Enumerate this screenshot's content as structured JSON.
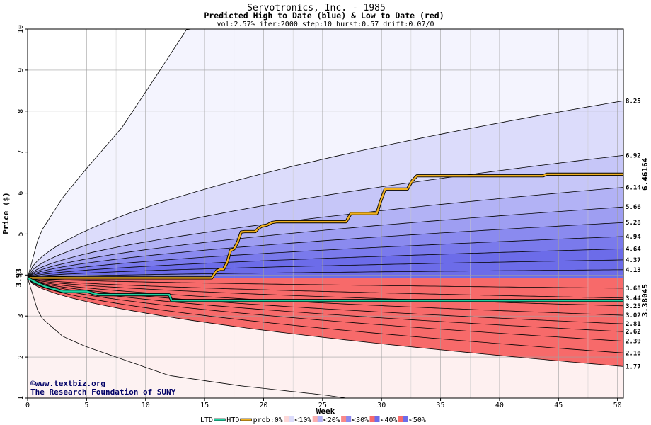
{
  "chart_data": {
    "type": "area",
    "title": "Servotronics, Inc. - 1985",
    "subtitle": "Predicted High to Date (blue) &  Low to Date (red)",
    "params": "vol:2.57% iter:2000 step:10 hurst:0.57 drift:0.07/0",
    "xlabel": "Week",
    "ylabel": "Price ($)",
    "xlim": [
      0,
      50.5
    ],
    "ylim": [
      1,
      10
    ],
    "xticks": [
      0,
      5,
      10,
      15,
      20,
      25,
      30,
      35,
      40,
      45,
      50
    ],
    "yticks": [
      1,
      2,
      3,
      4,
      5,
      6,
      7,
      8,
      9,
      10
    ],
    "grid": true,
    "start_price": 3.93,
    "start_label": "3.93",
    "current_high": 6.46164,
    "current_high_label": "6.46164",
    "current_low": 3.38045,
    "current_low_label": "3.38045",
    "high_band_ends": [
      {
        "label": "8.25",
        "value": 8.25
      },
      {
        "label": "6.92",
        "value": 6.92
      },
      {
        "label": "6.14",
        "value": 6.14
      },
      {
        "label": "5.66",
        "value": 5.66
      },
      {
        "label": "5.28",
        "value": 5.28
      },
      {
        "label": "4.94",
        "value": 4.94
      },
      {
        "label": "4.64",
        "value": 4.64
      },
      {
        "label": "4.37",
        "value": 4.37
      },
      {
        "label": "4.13",
        "value": 4.13
      }
    ],
    "low_band_ends": [
      {
        "label": "3.68",
        "value": 3.68
      },
      {
        "label": "3.44",
        "value": 3.44
      },
      {
        "label": "3.25",
        "value": 3.25
      },
      {
        "label": "3.02",
        "value": 3.02
      },
      {
        "label": "2.81",
        "value": 2.81
      },
      {
        "label": "2.62",
        "value": 2.62
      },
      {
        "label": "2.39",
        "value": 2.39
      },
      {
        "label": "2.10",
        "value": 2.1
      },
      {
        "label": "1.77",
        "value": 1.77
      }
    ],
    "high_extreme": {
      "x": [
        0,
        1,
        3,
        5,
        8,
        11,
        13.5
      ],
      "y": [
        3.93,
        5.0,
        5.9,
        6.6,
        7.6,
        8.9,
        10.0
      ]
    },
    "low_extreme": {
      "x": [
        0,
        1,
        3,
        5,
        8,
        12,
        18,
        25,
        27
      ],
      "y": [
        3.93,
        3.0,
        2.5,
        2.25,
        1.95,
        1.55,
        1.3,
        1.08,
        1.0
      ]
    },
    "htd_series": {
      "name": "HTD",
      "x": [
        0,
        15.6,
        16,
        16.3,
        16.6,
        16.9,
        17.2,
        17.5,
        17.8,
        18.1,
        18.4,
        19.3,
        19.6,
        19.9,
        20.3,
        20.7,
        21.1,
        21.5,
        27,
        27.4,
        29.6,
        29.9,
        30.3,
        32.2,
        32.6,
        33,
        43.7,
        44,
        50.5
      ],
      "y": [
        3.93,
        3.93,
        4.1,
        4.14,
        4.14,
        4.3,
        4.6,
        4.64,
        4.8,
        5.05,
        5.06,
        5.06,
        5.15,
        5.2,
        5.22,
        5.28,
        5.3,
        5.3,
        5.3,
        5.5,
        5.5,
        5.78,
        6.1,
        6.1,
        6.3,
        6.42,
        6.42,
        6.46,
        6.46
      ]
    },
    "ltd_series": {
      "name": "LTD",
      "x": [
        0,
        0.5,
        1,
        1.5,
        2,
        2.5,
        3,
        5,
        5.5,
        6,
        8,
        12,
        12.2,
        50.5
      ],
      "y": [
        3.93,
        3.85,
        3.78,
        3.72,
        3.68,
        3.64,
        3.6,
        3.6,
        3.56,
        3.52,
        3.52,
        3.52,
        3.38,
        3.38
      ]
    },
    "legend": [
      "LTD",
      "HTD",
      "prob:0%",
      "<10%",
      "<20%",
      "<30%",
      "<40%",
      "<50%"
    ],
    "legend_placement": "bottom-center",
    "colors": {
      "htd": "#f0b020",
      "ltd": "#20d0a0",
      "start_label": "#008040",
      "high_label": "#b08000",
      "low_label": "#008040",
      "credit": "#000066",
      "high_bands": [
        "#f4f4fe",
        "#dcdcfb",
        "#c6c6f8",
        "#b2b2f5",
        "#9e9ef2",
        "#8a8aef",
        "#7a7aec",
        "#6c6ce9"
      ],
      "low_bands": [
        "#fef0f0",
        "#fdd8d8",
        "#fcc4c4",
        "#fbb0b0",
        "#fa9c9c",
        "#f98888",
        "#f87878",
        "#f76a6a"
      ]
    }
  },
  "credit": {
    "line1": "©www.textbiz.org",
    "line2": "The Research Foundation of SUNY"
  }
}
